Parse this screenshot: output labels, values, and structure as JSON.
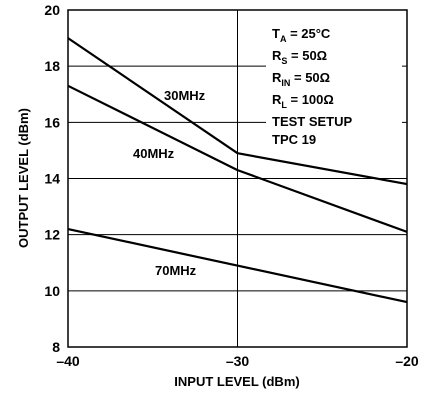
{
  "chart_data": {
    "type": "line",
    "title": "",
    "xlabel": "INPUT LEVEL (dBm)",
    "ylabel": "OUTPUT LEVEL (dBm)",
    "xlim": [
      -40,
      -20
    ],
    "ylim": [
      8,
      20
    ],
    "x_ticks": [
      -40,
      -30,
      -20
    ],
    "x_tick_labels": [
      "–40",
      "–30",
      "–20"
    ],
    "y_ticks": [
      8,
      10,
      12,
      14,
      16,
      18,
      20
    ],
    "y_tick_labels": [
      "8",
      "10",
      "12",
      "14",
      "16",
      "18",
      "20"
    ],
    "grid": true,
    "series": [
      {
        "name": "30MHz",
        "x": [
          -40,
          -30,
          -20
        ],
        "y": [
          19.0,
          14.9,
          13.8
        ]
      },
      {
        "name": "40MHz",
        "x": [
          -40,
          -30,
          -20
        ],
        "y": [
          17.3,
          14.3,
          12.1
        ]
      },
      {
        "name": "70MHz",
        "x": [
          -40,
          -20
        ],
        "y": [
          12.2,
          9.6
        ]
      }
    ],
    "conditions": {
      "ta": {
        "main": "T",
        "sub": "A",
        "value": " = 25°C"
      },
      "rs": {
        "main": "R",
        "sub": "S",
        "value": " = 50Ω"
      },
      "rin": {
        "main": "R",
        "sub": "IN",
        "value": " = 50Ω"
      },
      "rl": {
        "main": "R",
        "sub": "L",
        "value": " = 100Ω"
      },
      "setup1": "TEST SETUP",
      "setup2": "TPC 19"
    }
  }
}
